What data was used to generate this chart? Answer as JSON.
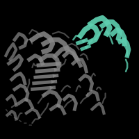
{
  "background_color": "#000000",
  "figsize": [
    2.0,
    2.0
  ],
  "dpi": 100,
  "main_color": "#888888",
  "highlight_color": "#5ecfb0",
  "main_color_dark": "#606060",
  "main_color_light": "#aaaaaa"
}
